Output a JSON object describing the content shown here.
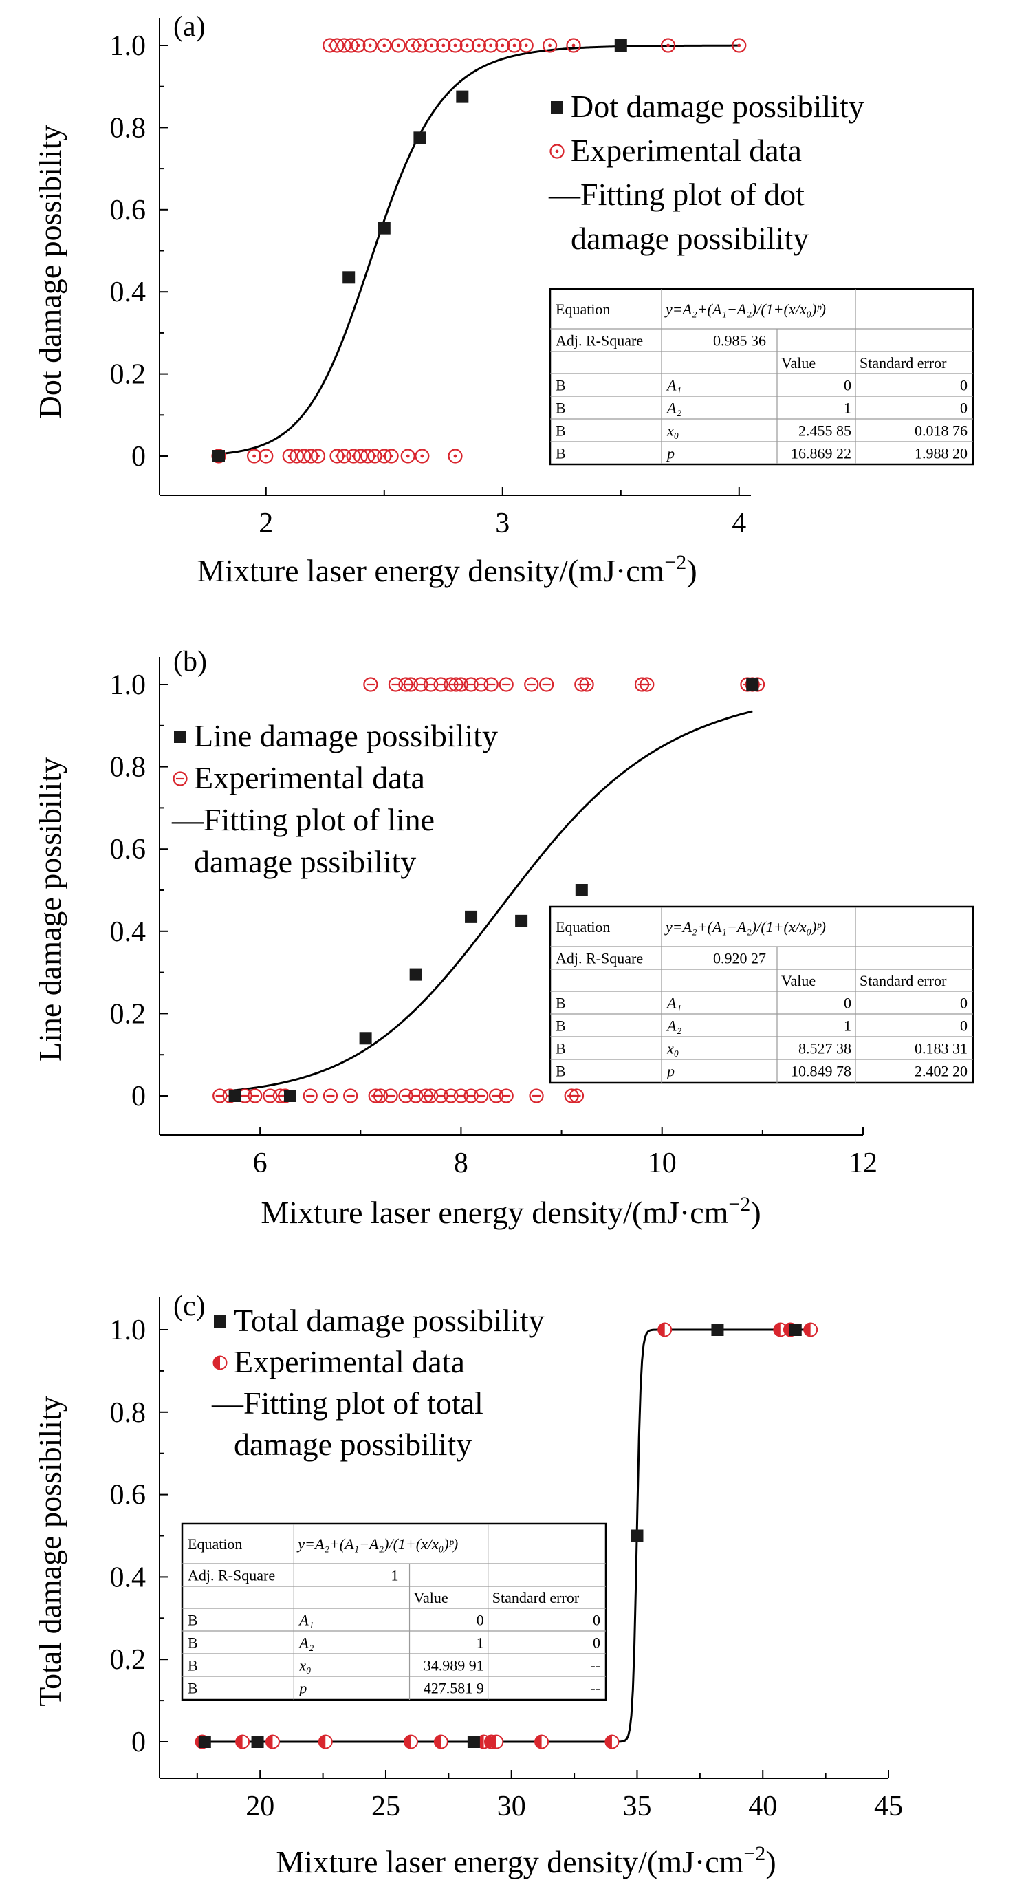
{
  "colors": {
    "square": "#1a1a1a",
    "circle": "#d9262e",
    "fit": "#000000",
    "axis": "#000000"
  },
  "chart_data": [
    {
      "panel_label": "(a)",
      "type": "scatter",
      "xlabel": "Mixture laser energy density/(mJ·cm",
      "xlabel_sup": "−2",
      "xlabel_close": ")",
      "ylabel": "Dot damage possibility",
      "xlim": [
        1.55,
        4.05
      ],
      "ylim": [
        -0.1,
        1.05
      ],
      "x_ticks": [
        2,
        3,
        4
      ],
      "x_tick_labels": [
        "2",
        "3",
        "4"
      ],
      "x_minor": [
        2.5,
        3.5
      ],
      "y_ticks": [
        0,
        0.2,
        0.4,
        0.6,
        0.8,
        1.0
      ],
      "y_tick_labels": [
        "0",
        "0.2",
        "0.4",
        "0.6",
        "0.8",
        "1.0"
      ],
      "marker_style": "dot",
      "legend": [
        "Dot damage possibility",
        "Experimental data",
        "—Fitting plot of dot",
        "damage possibility"
      ],
      "legend_position": "right",
      "series": [
        {
          "name": "Dot damage possibility",
          "kind": "squares",
          "points": [
            [
              1.8,
              0
            ],
            [
              2.35,
              0.435
            ],
            [
              2.5,
              0.555
            ],
            [
              2.65,
              0.775
            ],
            [
              2.83,
              0.875
            ],
            [
              3.5,
              1.0
            ]
          ]
        },
        {
          "name": "Experimental data",
          "kind": "circles",
          "points": [
            [
              1.8,
              0
            ],
            [
              1.95,
              0
            ],
            [
              2.0,
              0
            ],
            [
              2.1,
              0
            ],
            [
              2.13,
              0
            ],
            [
              2.16,
              0
            ],
            [
              2.19,
              0
            ],
            [
              2.22,
              0
            ],
            [
              2.3,
              0
            ],
            [
              2.33,
              0
            ],
            [
              2.37,
              0
            ],
            [
              2.4,
              0
            ],
            [
              2.43,
              0
            ],
            [
              2.46,
              0
            ],
            [
              2.5,
              0
            ],
            [
              2.53,
              0
            ],
            [
              2.6,
              0
            ],
            [
              2.66,
              0
            ],
            [
              2.8,
              0
            ],
            [
              2.27,
              1
            ],
            [
              2.3,
              1
            ],
            [
              2.33,
              1
            ],
            [
              2.36,
              1
            ],
            [
              2.39,
              1
            ],
            [
              2.44,
              1
            ],
            [
              2.5,
              1
            ],
            [
              2.56,
              1
            ],
            [
              2.62,
              1
            ],
            [
              2.65,
              1
            ],
            [
              2.7,
              1
            ],
            [
              2.75,
              1
            ],
            [
              2.8,
              1
            ],
            [
              2.85,
              1
            ],
            [
              2.9,
              1
            ],
            [
              2.95,
              1
            ],
            [
              3.0,
              1
            ],
            [
              3.05,
              1
            ],
            [
              3.1,
              1
            ],
            [
              3.2,
              1
            ],
            [
              3.3,
              1
            ],
            [
              3.7,
              1
            ],
            [
              4.0,
              1
            ]
          ]
        },
        {
          "name": "Fitting plot of dot damage possibility",
          "kind": "fit",
          "fit": {
            "A1": 0,
            "A2": 1,
            "x0": 2.45585,
            "p": 16.86922,
            "x_range": [
              1.8,
              4.0
            ]
          }
        }
      ],
      "table": {
        "equation_label": "Equation",
        "equation": "y=A₂+(A₁−A₂)/(1+(x/x₀)ᵖ)",
        "r2_label": "Adj. R-Square",
        "r2": "0.985 36",
        "value_header": "Value",
        "error_header": "Standard error",
        "rows": [
          {
            "b": "B",
            "param": "A₁",
            "value": "0",
            "error": "0"
          },
          {
            "b": "B",
            "param": "A₂",
            "value": "1",
            "error": "0"
          },
          {
            "b": "B",
            "param": "x₀",
            "value": "2.455 85",
            "error": "0.018 76"
          },
          {
            "b": "B",
            "param": "p",
            "value": "16.869 22",
            "error": "1.988 20"
          }
        ]
      }
    },
    {
      "panel_label": "(b)",
      "type": "scatter",
      "xlabel": "Mixture laser energy density/(mJ·cm",
      "xlabel_sup": "−2",
      "xlabel_close": ")",
      "ylabel": "Line damage possibility",
      "xlim": [
        5.0,
        12.0
      ],
      "ylim": [
        -0.1,
        1.05
      ],
      "x_ticks": [
        6,
        8,
        10,
        12
      ],
      "x_tick_labels": [
        "6",
        "8",
        "10",
        "12"
      ],
      "x_minor": [
        7,
        9,
        11
      ],
      "y_ticks": [
        0,
        0.2,
        0.4,
        0.6,
        0.8,
        1.0
      ],
      "y_tick_labels": [
        "0",
        "0.2",
        "0.4",
        "0.6",
        "0.8",
        "1.0"
      ],
      "marker_style": "bar",
      "legend": [
        "Line damage possibility",
        "Experimental data",
        "—Fitting plot of line",
        "damage pssibility"
      ],
      "legend_position": "top-left",
      "series": [
        {
          "name": "Line damage possibility",
          "kind": "squares",
          "points": [
            [
              5.75,
              0
            ],
            [
              6.3,
              0
            ],
            [
              7.05,
              0.14
            ],
            [
              7.55,
              0.295
            ],
            [
              8.1,
              0.435
            ],
            [
              8.6,
              0.425
            ],
            [
              9.2,
              0.5
            ],
            [
              10.9,
              1.0
            ]
          ]
        },
        {
          "name": "Experimental data",
          "kind": "circles",
          "points": [
            [
              5.6,
              0
            ],
            [
              5.7,
              0
            ],
            [
              5.85,
              0
            ],
            [
              5.95,
              0
            ],
            [
              6.1,
              0
            ],
            [
              6.2,
              0
            ],
            [
              6.25,
              0
            ],
            [
              6.5,
              0
            ],
            [
              6.7,
              0
            ],
            [
              6.9,
              0
            ],
            [
              7.15,
              0
            ],
            [
              7.2,
              0
            ],
            [
              7.3,
              0
            ],
            [
              7.45,
              0
            ],
            [
              7.55,
              0
            ],
            [
              7.65,
              0
            ],
            [
              7.7,
              0
            ],
            [
              7.8,
              0
            ],
            [
              7.9,
              0
            ],
            [
              8.0,
              0
            ],
            [
              8.1,
              0
            ],
            [
              8.2,
              0
            ],
            [
              8.35,
              0
            ],
            [
              8.45,
              0
            ],
            [
              8.75,
              0
            ],
            [
              9.1,
              0
            ],
            [
              9.15,
              0
            ],
            [
              7.1,
              1
            ],
            [
              7.35,
              1
            ],
            [
              7.45,
              1
            ],
            [
              7.5,
              1
            ],
            [
              7.6,
              1
            ],
            [
              7.7,
              1
            ],
            [
              7.8,
              1
            ],
            [
              7.9,
              1
            ],
            [
              7.95,
              1
            ],
            [
              8.0,
              1
            ],
            [
              8.1,
              1
            ],
            [
              8.2,
              1
            ],
            [
              8.3,
              1
            ],
            [
              8.45,
              1
            ],
            [
              8.7,
              1
            ],
            [
              8.85,
              1
            ],
            [
              9.2,
              1
            ],
            [
              9.25,
              1
            ],
            [
              9.8,
              1
            ],
            [
              9.85,
              1
            ],
            [
              10.85,
              1
            ],
            [
              10.9,
              1
            ],
            [
              10.95,
              1
            ]
          ]
        },
        {
          "name": "Fitting plot of line damage pssibility",
          "kind": "fit",
          "fit": {
            "A1": 0,
            "A2": 1,
            "x0": 8.52738,
            "p": 10.84978,
            "x_range": [
              5.7,
              10.9
            ]
          }
        }
      ],
      "table": {
        "equation_label": "Equation",
        "equation": "y=A₂+(A₁−A₂)/(1+(x/x₀)ᵖ)",
        "r2_label": "Adj. R-Square",
        "r2": "0.920 27",
        "value_header": "Value",
        "error_header": "Standard error",
        "rows": [
          {
            "b": "B",
            "param": "A₁",
            "value": "0",
            "error": "0"
          },
          {
            "b": "B",
            "param": "A₂",
            "value": "1",
            "error": "0"
          },
          {
            "b": "B",
            "param": "x₀",
            "value": "8.527 38",
            "error": "0.183 31"
          },
          {
            "b": "B",
            "param": "p",
            "value": "10.849 78",
            "error": "2.402 20"
          }
        ]
      }
    },
    {
      "panel_label": "(c)",
      "type": "scatter",
      "xlabel": "Mixture laser energy density/(mJ·cm",
      "xlabel_sup": "−2",
      "xlabel_close": ")",
      "ylabel": "Total damage possibility",
      "xlim": [
        16.0,
        45.0
      ],
      "ylim": [
        -0.1,
        1.05
      ],
      "x_ticks": [
        20,
        25,
        30,
        35,
        40,
        45
      ],
      "x_tick_labels": [
        "20",
        "25",
        "30",
        "35",
        "40",
        "45"
      ],
      "x_minor": [
        17.5,
        22.5,
        27.5,
        32.5,
        37.5,
        42.5
      ],
      "y_ticks": [
        0,
        0.2,
        0.4,
        0.6,
        0.8,
        1.0
      ],
      "y_tick_labels": [
        "0",
        "0.2",
        "0.4",
        "0.6",
        "0.8",
        "1.0"
      ],
      "marker_style": "half",
      "legend": [
        "Total damage possibility",
        "Experimental data",
        "—Fitting plot of total",
        "damage possibility"
      ],
      "legend_position": "top",
      "series": [
        {
          "name": "Total damage possibility",
          "kind": "squares",
          "points": [
            [
              17.8,
              0
            ],
            [
              19.9,
              0
            ],
            [
              28.5,
              0
            ],
            [
              35.0,
              0.5
            ],
            [
              38.2,
              1.0
            ],
            [
              41.3,
              1.0
            ]
          ]
        },
        {
          "name": "Experimental data",
          "kind": "circles",
          "points": [
            [
              17.7,
              0
            ],
            [
              19.3,
              0
            ],
            [
              20.5,
              0
            ],
            [
              22.6,
              0
            ],
            [
              26.0,
              0
            ],
            [
              27.2,
              0
            ],
            [
              28.9,
              0
            ],
            [
              29.2,
              0
            ],
            [
              29.4,
              0
            ],
            [
              31.2,
              0
            ],
            [
              34.0,
              0
            ],
            [
              36.1,
              1
            ],
            [
              40.7,
              1
            ],
            [
              41.1,
              1
            ],
            [
              41.9,
              1
            ]
          ]
        },
        {
          "name": "Fitting plot of total damage possibility",
          "kind": "fit",
          "fit": {
            "A1": 0,
            "A2": 1,
            "x0": 34.98991,
            "p": 427.5819,
            "x_range": [
              17.7,
              42.0
            ]
          }
        }
      ],
      "table": {
        "equation_label": "Equation",
        "equation": "y=A₂+(A₁−A₂)/(1+(x/x₀)ᵖ)",
        "r2_label": "Adj. R-Square",
        "r2": "1",
        "value_header": "Value",
        "error_header": "Standard error",
        "rows": [
          {
            "b": "B",
            "param": "A₁",
            "value": "0",
            "error": "0"
          },
          {
            "b": "B",
            "param": "A₂",
            "value": "1",
            "error": "0"
          },
          {
            "b": "B",
            "param": "x₀",
            "value": "34.989 91",
            "error": "--"
          },
          {
            "b": "B",
            "param": "p",
            "value": "427.581 9",
            "error": "--"
          }
        ]
      }
    }
  ]
}
